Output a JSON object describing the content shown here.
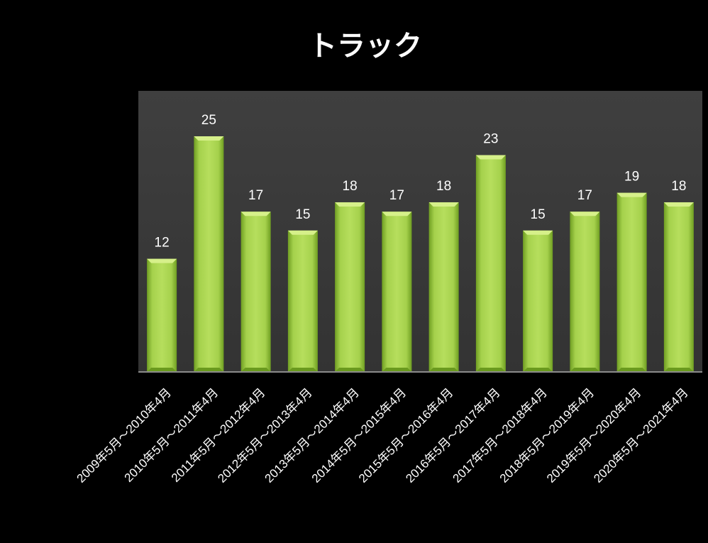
{
  "colors": {
    "background": "#000000",
    "plot_area": "#3a3a3a",
    "bar_fill": "#9ac940",
    "bar_highlight": "#d6f08a",
    "bar_shadow": "#6a9a1e",
    "text": "#ffffff"
  },
  "chart_data": {
    "type": "bar",
    "title": "トラック",
    "categories": [
      "2009年5月～2010年4月",
      "2010年5月～2011年4月",
      "2011年5月～2012年4月",
      "2012年5月～2013年4月",
      "2013年5月～2014年4月",
      "2014年5月～2015年4月",
      "2015年5月～2016年4月",
      "2016年5月～2017年4月",
      "2017年5月～2018年4月",
      "2018年5月～2019年4月",
      "2019年5月～2020年4月",
      "2020年5月～2021年4月"
    ],
    "values": [
      12,
      25,
      17,
      15,
      18,
      17,
      18,
      23,
      15,
      17,
      19,
      18
    ],
    "ylim": [
      0,
      27
    ],
    "grid": false,
    "legend": "none",
    "data_labels": true
  }
}
